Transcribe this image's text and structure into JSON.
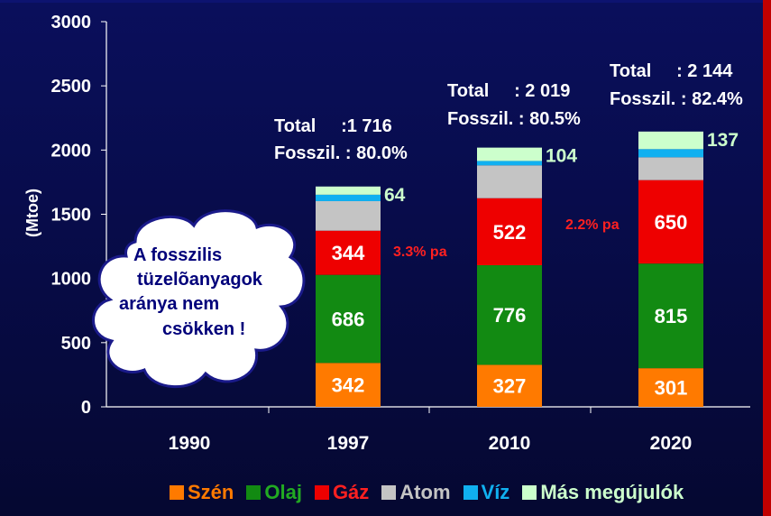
{
  "chart_data": {
    "type": "bar",
    "stacked": true,
    "ylabel": "(Mtoe)",
    "ylim": [
      0,
      3000
    ],
    "yticks": [
      0,
      500,
      1000,
      1500,
      2000,
      2500,
      3000
    ],
    "categories": [
      "1990",
      "1997",
      "2010",
      "2020"
    ],
    "series": [
      {
        "name": "Szén",
        "color": "#ff7a00",
        "values": [
          null,
          342,
          327,
          301
        ],
        "labels": [
          "",
          "342",
          "327",
          "301"
        ]
      },
      {
        "name": "Olaj",
        "color": "#128a12",
        "values": [
          null,
          686,
          776,
          815
        ],
        "labels": [
          "",
          "686",
          "776",
          "815"
        ]
      },
      {
        "name": "Gáz",
        "color": "#ee0000",
        "values": [
          null,
          344,
          522,
          650
        ],
        "labels": [
          "",
          "344",
          "522",
          "650"
        ]
      },
      {
        "name": "Atom",
        "color": "#c4c4c4",
        "values": [
          null,
          230,
          256,
          178
        ],
        "labels": [
          "",
          "",
          "",
          ""
        ]
      },
      {
        "name": "Víz",
        "color": "#10b0f0",
        "values": [
          null,
          50,
          34,
          63
        ],
        "labels": [
          "",
          "",
          "",
          ""
        ]
      },
      {
        "name": "Más megújulók",
        "color": "#ccffcc",
        "values": [
          null,
          64,
          104,
          137
        ],
        "labels": [
          "",
          "64",
          "104",
          "137"
        ]
      }
    ],
    "annotations": [
      {
        "cat": "1997",
        "total_line": "Total     :1 716",
        "fossil_line": "Fosszil. : 80.0%",
        "growth": "3.3% pa"
      },
      {
        "cat": "2010",
        "total_line": "Total     : 2 019",
        "fossil_line": "Fosszil. : 80.5%",
        "growth": "2.2% pa"
      },
      {
        "cat": "2020",
        "total_line": "Total     : 2 144",
        "fossil_line": "Fosszil. : 82.4%",
        "growth": ""
      }
    ],
    "callout": [
      "A fosszilis",
      "tüzelõanyagok",
      "aránya nem",
      "csökken !"
    ]
  },
  "colors": {
    "background": "#070b45",
    "callout_fill": "#ffffff",
    "callout_border": "#1a1a8a",
    "growth_text": "#ff2020"
  }
}
